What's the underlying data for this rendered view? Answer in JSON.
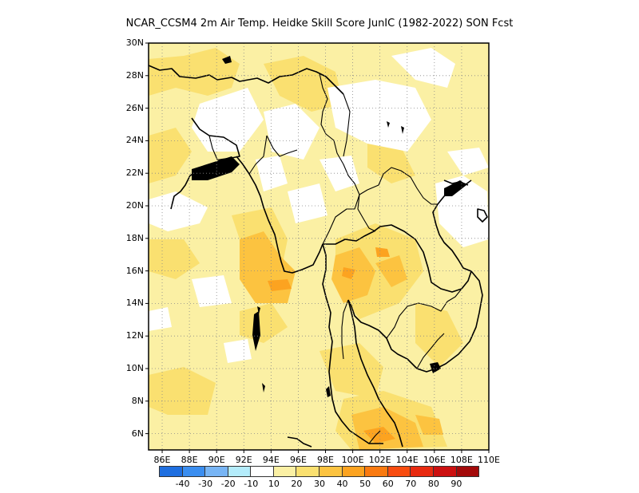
{
  "title": "NCAR_CCSM4  2m Air Temp. Heidke Skill Score JunIC (1982-2022) SON Fcst",
  "map": {
    "lat_range": [
      5,
      30
    ],
    "lon_range": [
      85,
      110
    ],
    "grid": true,
    "lat_ticks": [
      "30N",
      "28N",
      "26N",
      "24N",
      "22N",
      "20N",
      "18N",
      "16N",
      "14N",
      "12N",
      "10N",
      "8N",
      "6N"
    ],
    "lat_values": [
      30,
      28,
      26,
      24,
      22,
      20,
      18,
      16,
      14,
      12,
      10,
      8,
      6
    ],
    "lon_ticks": [
      "86E",
      "88E",
      "90E",
      "92E",
      "94E",
      "96E",
      "98E",
      "100E",
      "102E",
      "104E",
      "106E",
      "108E",
      "110E"
    ],
    "lon_values": [
      86,
      88,
      90,
      92,
      94,
      96,
      98,
      100,
      102,
      104,
      106,
      108,
      110
    ],
    "background_color": "#fbf0a4"
  },
  "colorbar": {
    "colors": [
      "#1f6fe0",
      "#3b8ef0",
      "#78b5f5",
      "#b4ecfb",
      "#ffffff",
      "#fbf0a4",
      "#fae070",
      "#fcc340",
      "#fca320",
      "#fa7a10",
      "#f84c10",
      "#e82a10",
      "#cc1010",
      "#a30a0a"
    ],
    "tick_labels": [
      "-40",
      "-30",
      "-20",
      "-10",
      "10",
      "20",
      "30",
      "40",
      "50",
      "60",
      "70",
      "80",
      "90"
    ]
  }
}
